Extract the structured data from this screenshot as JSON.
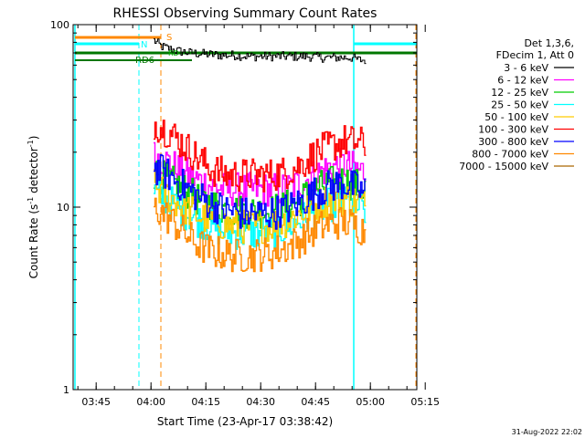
{
  "chart_data": {
    "type": "line",
    "title": "RHESSI Observing Summary Count Rates",
    "xlabel": "Start Time (23-Apr-17 03:38:42)",
    "ylabel_main": "Count Rate (s",
    "ylabel_sup1": "-1",
    "ylabel_mid": " detector",
    "ylabel_sup2": "-1",
    "ylabel_end": ")",
    "y_scale": "log",
    "ylim": [
      1,
      100
    ],
    "y_ticks": [
      {
        "value": 1,
        "label": "1"
      },
      {
        "value": 10,
        "label": "10"
      },
      {
        "value": 100,
        "label": "100"
      }
    ],
    "xlim_minutes": [
      0,
      94
    ],
    "x_ticks": [
      {
        "minutes": 6.3,
        "label": "03:45"
      },
      {
        "minutes": 21.3,
        "label": "04:00"
      },
      {
        "minutes": 36.3,
        "label": "04:15"
      },
      {
        "minutes": 51.3,
        "label": "04:30"
      },
      {
        "minutes": 66.3,
        "label": "04:45"
      },
      {
        "minutes": 81.3,
        "label": "05:00"
      },
      {
        "minutes": 96.3,
        "label": "05:15"
      }
    ],
    "legend_header": [
      "Det 1,3,6,",
      "FDecim 1, Att 0"
    ],
    "legend_position": "right",
    "series": [
      {
        "name": "3 - 6 keV",
        "color": "#000000",
        "x": [
          22,
          24,
          26,
          28,
          32,
          36,
          40,
          44,
          48,
          52,
          56,
          60,
          64,
          68,
          72,
          76,
          78,
          80
        ],
        "y": [
          82,
          76,
          74,
          72,
          70,
          69,
          68,
          68,
          67,
          67,
          67,
          67,
          67,
          66,
          66,
          66,
          64,
          64
        ]
      },
      {
        "name": "6 - 12 keV",
        "color": "#ff00ff",
        "x": [
          22,
          26,
          30,
          34,
          38,
          42,
          46,
          50,
          54,
          58,
          62,
          66,
          70,
          74,
          78,
          80
        ],
        "y": [
          19,
          17.5,
          15.5,
          14,
          13,
          12.5,
          12.5,
          12.5,
          12.5,
          12.5,
          13.5,
          15,
          16.5,
          17,
          16,
          15.5
        ]
      },
      {
        "name": "12 - 25 keV",
        "color": "#00cc00",
        "x": [
          22,
          26,
          30,
          34,
          38,
          42,
          46,
          50,
          54,
          58,
          62,
          66,
          70,
          74,
          78,
          80
        ],
        "y": [
          15.5,
          14,
          12.5,
          11,
          10.3,
          9.7,
          9.5,
          9.5,
          9.5,
          10,
          11,
          12.5,
          13.5,
          14,
          13,
          12.5
        ]
      },
      {
        "name": "25 - 50 keV",
        "color": "#00ffff",
        "x": [
          22,
          26,
          30,
          34,
          38,
          42,
          46,
          50,
          54,
          58,
          62,
          66,
          70,
          74,
          78,
          80
        ],
        "y": [
          12,
          10.8,
          9.5,
          8.5,
          7.8,
          7.3,
          7.2,
          7.2,
          7.3,
          7.7,
          8.5,
          9.5,
          10.3,
          10.5,
          10,
          9.5
        ]
      },
      {
        "name": "50 - 100 keV",
        "color": "#ffcc00",
        "x": [
          22,
          26,
          30,
          34,
          38,
          42,
          46,
          50,
          54,
          58,
          62,
          66,
          70,
          74,
          78,
          80
        ],
        "y": [
          13,
          11.5,
          10,
          9,
          8.4,
          8,
          7.8,
          7.8,
          8,
          8.4,
          9.2,
          10.2,
          11,
          11.2,
          10.6,
          10
        ]
      },
      {
        "name": "100 - 300 keV",
        "color": "#ff0000",
        "x": [
          22,
          26,
          30,
          34,
          38,
          42,
          46,
          50,
          54,
          58,
          62,
          66,
          70,
          74,
          78,
          80
        ],
        "y": [
          29,
          26,
          22,
          18.5,
          16,
          15,
          15,
          15,
          15,
          15.5,
          17,
          19.5,
          21.5,
          23,
          22.5,
          22
        ]
      },
      {
        "name": "300 - 800 keV",
        "color": "#0000ff",
        "x": [
          22,
          26,
          30,
          34,
          38,
          42,
          46,
          50,
          54,
          58,
          62,
          66,
          70,
          74,
          78,
          80
        ],
        "y": [
          16.5,
          15,
          13,
          11.5,
          10.3,
          9.6,
          9.2,
          9.2,
          9.3,
          9.7,
          10.6,
          12,
          13,
          13.5,
          12.5,
          12
        ]
      },
      {
        "name": "800 - 7000 keV",
        "color": "#ff8800",
        "x": [
          22,
          26,
          30,
          34,
          38,
          42,
          46,
          50,
          54,
          58,
          62,
          66,
          70,
          74,
          78,
          80
        ],
        "y": [
          10,
          8.7,
          7.3,
          6.2,
          5.7,
          5.5,
          5.4,
          5.5,
          5.6,
          6,
          6.6,
          7.5,
          8.1,
          8.3,
          7.8,
          7.3
        ]
      },
      {
        "name": "7000 - 15000 keV",
        "color": "#aa6600",
        "x": [],
        "y": []
      }
    ],
    "annotations": [
      {
        "text": "S",
        "color": "#ff8800"
      },
      {
        "text": "N",
        "color": "#00ffff"
      },
      {
        "text": "RD",
        "color": "#00aa00"
      },
      {
        "text": "RD6",
        "color": "#007700"
      }
    ],
    "footer_date": "31-Aug-2022 22:02"
  }
}
